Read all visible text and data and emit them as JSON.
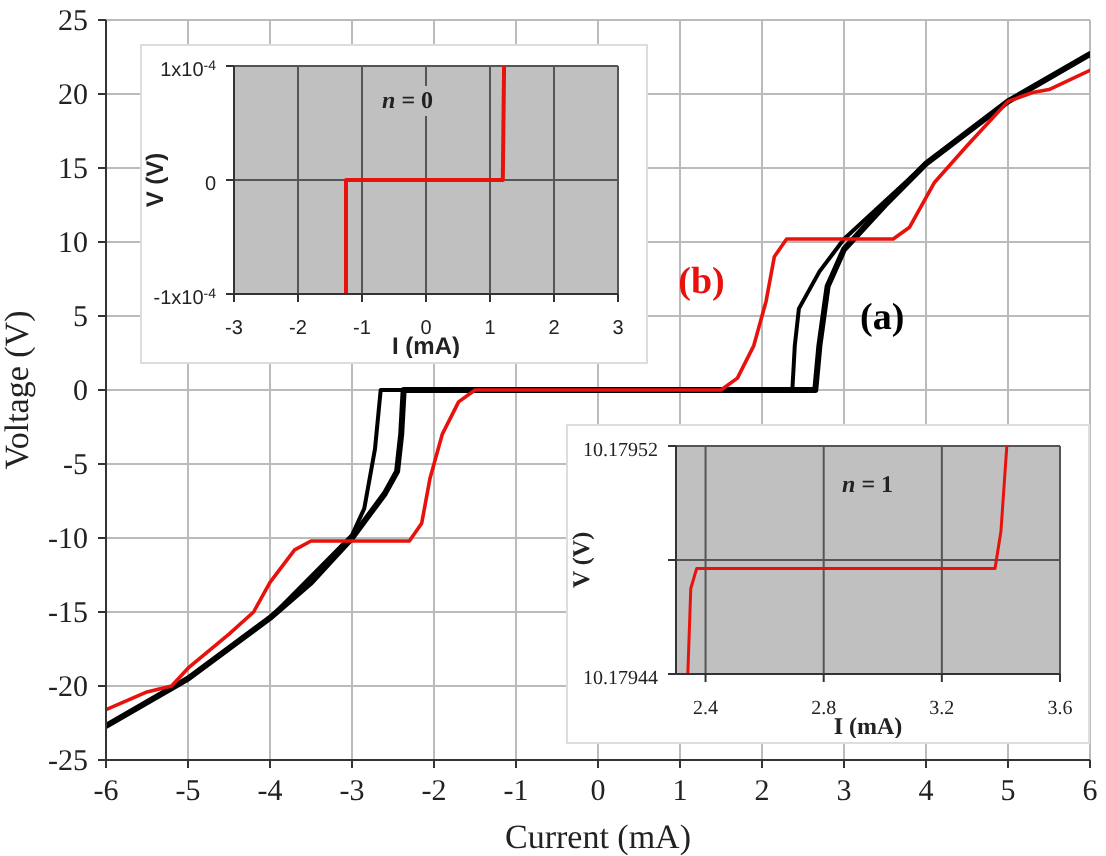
{
  "chart_data": [
    {
      "type": "line",
      "xlabel": "Current  (mA)",
      "ylabel": "Voltage  (V)",
      "xlim": [
        -6,
        6
      ],
      "xticks": [
        -6,
        -5,
        -4,
        -3,
        -2,
        -1,
        0,
        1,
        2,
        3,
        4,
        5,
        6
      ],
      "ylim": [
        -25,
        25
      ],
      "yticks": [
        -25,
        -20,
        -15,
        -10,
        -5,
        0,
        5,
        10,
        15,
        20,
        25
      ],
      "grid": true,
      "marker": "none",
      "line_style": "solid",
      "series": [
        {
          "name": "(a)",
          "color": "#000000",
          "x": [
            -6,
            -5,
            -4,
            -3.5,
            -3,
            -2.8,
            -2.6,
            -2.45,
            -2.4,
            -2.37,
            0,
            2.65,
            2.7,
            2.8,
            3,
            3.5,
            4,
            5,
            6
          ],
          "values": [
            -22.7,
            -19.5,
            -15.4,
            -13,
            -10,
            -8.5,
            -7,
            -5.5,
            -3,
            0,
            0,
            0,
            3,
            7,
            9.5,
            12.5,
            15.3,
            19.5,
            22.7
          ]
        },
        {
          "color": "#000000",
          "x": [
            -6,
            -5,
            -4,
            -3,
            -2.85,
            -2.72,
            -2.65,
            0,
            2.37,
            2.4,
            2.45,
            2.7,
            3,
            4,
            5,
            6
          ],
          "values": [
            -22.7,
            -19.5,
            -15.4,
            -9.8,
            -8,
            -4,
            0,
            0,
            0,
            3,
            5.5,
            8,
            10.2,
            15.3,
            19.5,
            22.7
          ]
        },
        {
          "name": "(b)",
          "color": "#e8120c",
          "x": [
            -6,
            -5.5,
            -5.2,
            -5,
            -4.5,
            -4.2,
            -4,
            -3.7,
            -3.5,
            -2.3,
            -2.15,
            -2.05,
            -1.9,
            -1.7,
            -1.5,
            1.5,
            1.7,
            1.9,
            2.05,
            2.15,
            2.3,
            3.6,
            3.8,
            4.1,
            4.5,
            5,
            5.3,
            5.5,
            6
          ],
          "values": [
            -21.6,
            -20.4,
            -20,
            -18.8,
            -16.5,
            -15,
            -13,
            -10.8,
            -10.2,
            -10.2,
            -9,
            -6,
            -3,
            -0.8,
            0,
            0,
            0.8,
            3,
            6,
            9,
            10.2,
            10.2,
            11,
            14,
            16.5,
            19.5,
            20.1,
            20.3,
            21.6
          ]
        }
      ]
    },
    {
      "type": "line",
      "xlabel": "I  (mA)",
      "ylabel": "V  (V)",
      "xlim": [
        -3,
        3
      ],
      "xticks": [
        -3,
        -2,
        -1,
        0,
        1,
        2,
        3
      ],
      "ylim": [
        -0.0001,
        0.0001
      ],
      "yticks": [
        {
          "value": -0.0001,
          "label": "-1x10$^{-4}$"
        },
        0,
        {
          "value": 0.0001,
          "label": "1x10$^{-4}$"
        }
      ],
      "grid": true,
      "annotations": [
        "n = 0"
      ],
      "marker": "none",
      "series": [
        {
          "color": "#e8120c",
          "x": [
            -1.25,
            -1.25,
            1.2,
            1.22
          ],
          "values": [
            -0.0001,
            0,
            0,
            0.0001
          ]
        }
      ]
    },
    {
      "type": "line",
      "xlabel": "I  (mA)",
      "ylabel": "V  (V)",
      "xlim": [
        2.3,
        3.6
      ],
      "xticks": [
        2.4,
        2.8,
        3.2,
        3.6
      ],
      "ylim": [
        10.17944,
        10.17952
      ],
      "yticks": [
        10.17944,
        {
          "value": 10.17948,
          "label": null
        },
        10.17952
      ],
      "grid": true,
      "annotations": [
        "n = 1"
      ],
      "marker": "none",
      "series": [
        {
          "color": "#e8120c",
          "x": [
            2.34,
            2.35,
            2.37,
            2.6,
            3,
            3.38,
            3.4,
            3.42
          ],
          "values": [
            10.17944,
            10.17947,
            10.179477,
            10.179477,
            10.179477,
            10.179477,
            10.17949,
            10.17952
          ]
        }
      ]
    }
  ]
}
